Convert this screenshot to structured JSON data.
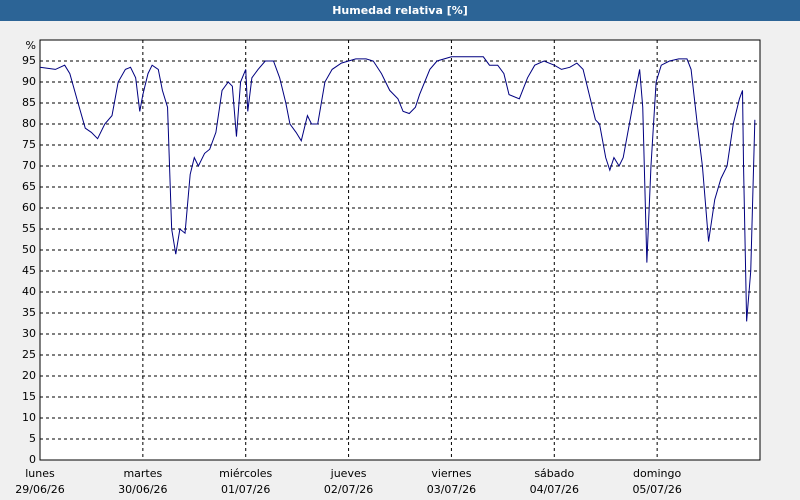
{
  "chart_data": {
    "type": "line",
    "title": "Humedad relativa [%]",
    "y_unit": "%",
    "xlim": [
      0,
      7
    ],
    "ylim": [
      0,
      100
    ],
    "xticks": [
      {
        "value": 0,
        "label": "lunes",
        "date": "29/06/26"
      },
      {
        "value": 1,
        "label": "martes",
        "date": "30/06/26"
      },
      {
        "value": 2,
        "label": "miércoles",
        "date": "01/07/26"
      },
      {
        "value": 3,
        "label": "jueves",
        "date": "02/07/26"
      },
      {
        "value": 4,
        "label": "viernes",
        "date": "03/07/26"
      },
      {
        "value": 5,
        "label": "sábado",
        "date": "04/07/26"
      },
      {
        "value": 6,
        "label": "domingo",
        "date": "05/07/26"
      }
    ],
    "yticks": [
      0,
      5,
      10,
      15,
      20,
      25,
      30,
      35,
      40,
      45,
      50,
      55,
      60,
      65,
      70,
      75,
      80,
      85,
      90,
      95
    ],
    "grid": true,
    "series": [
      {
        "color": "#000080",
        "x": [
          0,
          0.15,
          0.24,
          0.29,
          0.37,
          0.44,
          0.5,
          0.56,
          0.63,
          0.7,
          0.76,
          0.83,
          0.88,
          0.93,
          0.97,
          1.0,
          1.05,
          1.09,
          1.15,
          1.19,
          1.24,
          1.28,
          1.32,
          1.36,
          1.41,
          1.46,
          1.5,
          1.54,
          1.6,
          1.65,
          1.71,
          1.77,
          1.83,
          1.87,
          1.91,
          1.95,
          2.0,
          2.02,
          2.06,
          2.12,
          2.19,
          2.27,
          2.33,
          2.39,
          2.43,
          2.49,
          2.54,
          2.6,
          2.64,
          2.7,
          2.77,
          2.84,
          2.93,
          3.0,
          3.07,
          3.17,
          3.24,
          3.32,
          3.4,
          3.48,
          3.53,
          3.59,
          3.65,
          3.69,
          3.79,
          3.86,
          4.0,
          4.17,
          4.31,
          4.37,
          4.45,
          4.51,
          4.56,
          4.66,
          4.74,
          4.81,
          4.9,
          5.0,
          5.07,
          5.15,
          5.22,
          5.28,
          5.34,
          5.4,
          5.44,
          5.5,
          5.54,
          5.58,
          5.63,
          5.67,
          5.73,
          5.79,
          5.83,
          5.86,
          5.9,
          5.94,
          5.99,
          6.04,
          6.12,
          6.21,
          6.29,
          6.33,
          6.39,
          6.44,
          6.5,
          6.56,
          6.62,
          6.68,
          6.74,
          6.8,
          6.83,
          6.84,
          6.87,
          6.91,
          6.95
        ],
        "values": [
          93.5,
          93,
          94,
          92,
          85,
          79,
          78,
          76.5,
          80,
          82,
          90,
          93,
          93.5,
          91,
          83,
          87,
          92,
          94,
          93,
          88,
          84,
          55,
          49,
          55,
          54,
          68,
          72,
          70,
          73,
          74,
          78,
          88,
          90,
          89,
          77,
          90,
          93,
          83,
          91,
          93,
          95,
          95,
          91,
          85,
          80,
          78,
          76,
          82,
          80,
          80,
          90,
          93,
          94.5,
          95,
          95.5,
          95.5,
          95,
          92,
          88,
          86,
          83,
          82.5,
          84,
          87,
          93,
          95,
          96,
          96,
          96,
          94,
          94,
          92,
          87,
          86,
          91,
          94,
          95,
          94,
          93,
          93.5,
          94.5,
          93,
          87,
          81,
          80,
          72,
          69,
          72,
          70,
          72,
          80,
          88,
          93,
          84,
          47,
          70,
          90,
          94,
          95,
          95.5,
          95.5,
          93,
          80,
          70,
          52,
          62,
          67,
          70,
          80,
          86,
          88,
          70,
          33,
          45,
          81
        ]
      }
    ]
  }
}
